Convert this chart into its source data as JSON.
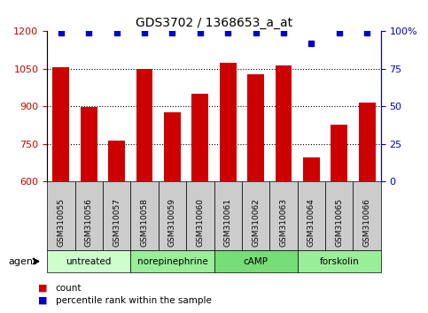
{
  "title": "GDS3702 / 1368653_a_at",
  "samples": [
    "GSM310055",
    "GSM310056",
    "GSM310057",
    "GSM310058",
    "GSM310059",
    "GSM310060",
    "GSM310061",
    "GSM310062",
    "GSM310063",
    "GSM310064",
    "GSM310065",
    "GSM310066"
  ],
  "counts": [
    1057,
    897,
    762,
    1050,
    877,
    950,
    1075,
    1030,
    1062,
    695,
    828,
    915
  ],
  "percentile_ranks": [
    99,
    99,
    99,
    99,
    99,
    99,
    99,
    99,
    99,
    92,
    99,
    99
  ],
  "ylim_left": [
    600,
    1200
  ],
  "ylim_right": [
    0,
    100
  ],
  "yticks_left": [
    600,
    750,
    900,
    1050,
    1200
  ],
  "yticks_right": [
    0,
    25,
    50,
    75,
    100
  ],
  "bar_color": "#cc0000",
  "dot_color": "#0000cc",
  "groups": [
    {
      "label": "untreated",
      "indices": [
        0,
        1,
        2
      ],
      "color": "#ccffcc"
    },
    {
      "label": "norepinephrine",
      "indices": [
        3,
        4,
        5
      ],
      "color": "#99ee99"
    },
    {
      "label": "cAMP",
      "indices": [
        6,
        7,
        8
      ],
      "color": "#77dd77"
    },
    {
      "label": "forskolin",
      "indices": [
        9,
        10,
        11
      ],
      "color": "#99ee99"
    }
  ],
  "agent_label": "agent",
  "legend_count_label": "count",
  "legend_pct_label": "percentile rank within the sample",
  "background_color": "#ffffff",
  "plot_bg_color": "#ffffff",
  "tick_label_bg": "#cccccc"
}
